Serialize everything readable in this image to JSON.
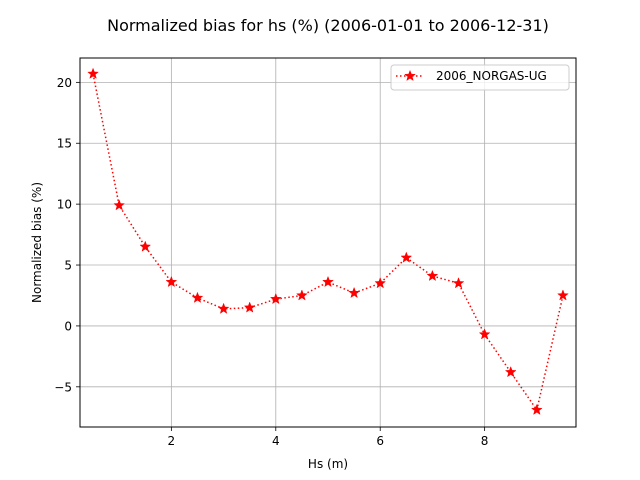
{
  "chart_data": {
    "type": "line",
    "title": "Normalized bias for hs (%) (2006-01-01 to 2006-12-31)",
    "xlabel": "Hs (m)",
    "ylabel": "Normalized bias (%)",
    "xlim": [
      0.25,
      9.75
    ],
    "ylim": [
      -8.3,
      22.0
    ],
    "xticks": [
      2,
      4,
      6,
      8
    ],
    "yticks": [
      -5,
      0,
      5,
      10,
      15,
      20
    ],
    "grid": true,
    "legend_position": "top-right",
    "series": [
      {
        "name": "2006_NORGAS-UG",
        "color": "#ff0000",
        "line_style": "dotted",
        "marker": "star",
        "x": [
          0.5,
          1.0,
          1.5,
          2.0,
          2.5,
          3.0,
          3.5,
          4.0,
          4.5,
          5.0,
          5.5,
          6.0,
          6.5,
          7.0,
          7.5,
          8.0,
          8.5,
          9.0,
          9.5
        ],
        "y": [
          20.7,
          9.9,
          6.5,
          3.6,
          2.3,
          1.4,
          1.5,
          2.2,
          2.5,
          3.6,
          2.7,
          3.5,
          5.6,
          4.1,
          3.5,
          -0.7,
          -3.8,
          -6.9,
          2.5
        ]
      }
    ]
  }
}
